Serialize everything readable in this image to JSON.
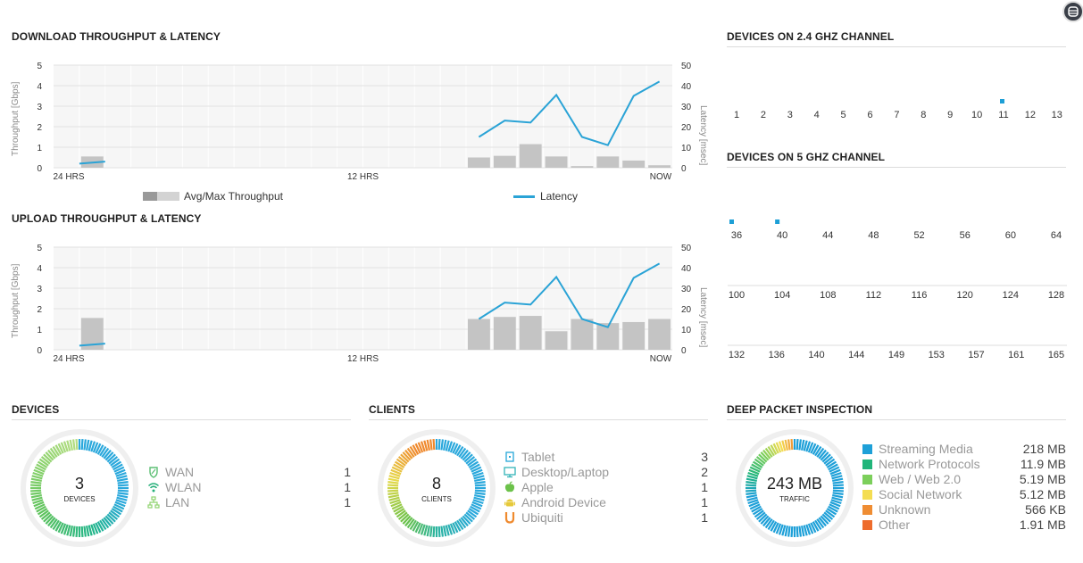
{
  "download": {
    "title": "DOWNLOAD THROUGHPUT & LATENCY",
    "y_left_label": "Throughput [Gbps]",
    "y_right_label": "Latency [msec]",
    "legend_throughput": "Avg/Max Throughput",
    "legend_latency": "Latency"
  },
  "upload": {
    "title": "UPLOAD THROUGHPUT & LATENCY",
    "y_left_label": "Throughput [Gbps]",
    "y_right_label": "Latency [msec]"
  },
  "chart_data": [
    {
      "type": "bar",
      "name": "download",
      "title": "DOWNLOAD THROUGHPUT & LATENCY",
      "x_ticks": [
        "24 HRS",
        "12 HRS",
        "NOW"
      ],
      "bucket_count": 24,
      "ylim_left": [
        0,
        5
      ],
      "ylim_right": [
        0,
        50
      ],
      "yticks_left": [
        "0",
        "1",
        "2",
        "3",
        "4",
        "5"
      ],
      "yticks_right": [
        "0",
        "10",
        "20",
        "30",
        "40",
        "50"
      ],
      "series": [
        {
          "name": "Avg/Max Throughput",
          "axis": "left",
          "points": [
            [
              1,
              0.55
            ],
            [
              16,
              0.5
            ],
            [
              17,
              0.58
            ],
            [
              18,
              1.15
            ],
            [
              19,
              0.55
            ],
            [
              20,
              0.08
            ],
            [
              21,
              0.55
            ],
            [
              22,
              0.35
            ],
            [
              23,
              0.12
            ]
          ]
        },
        {
          "name": "Latency",
          "axis": "right",
          "color": "#2aa3d6",
          "segments": [
            [
              [
                0.5,
                2
              ],
              [
                1.5,
                3
              ]
            ],
            [
              [
                16,
                15
              ],
              [
                17,
                23
              ],
              [
                18,
                22
              ],
              [
                19,
                35.5
              ],
              [
                20,
                15
              ],
              [
                21,
                11
              ],
              [
                22,
                35
              ],
              [
                23,
                42
              ]
            ]
          ]
        }
      ]
    },
    {
      "type": "bar",
      "name": "upload",
      "title": "UPLOAD THROUGHPUT & LATENCY",
      "x_ticks": [
        "24 HRS",
        "12 HRS",
        "NOW"
      ],
      "bucket_count": 24,
      "ylim_left": [
        0,
        5
      ],
      "ylim_right": [
        0,
        50
      ],
      "yticks_left": [
        "0",
        "1",
        "2",
        "3",
        "4",
        "5"
      ],
      "yticks_right": [
        "0",
        "10",
        "20",
        "30",
        "40",
        "50"
      ],
      "series": [
        {
          "name": "Avg/Max Throughput",
          "axis": "left",
          "points": [
            [
              1,
              1.55
            ],
            [
              16,
              1.5
            ],
            [
              17,
              1.6
            ],
            [
              18,
              1.65
            ],
            [
              19,
              0.9
            ],
            [
              20,
              1.5
            ],
            [
              21,
              1.3
            ],
            [
              22,
              1.35
            ],
            [
              23,
              1.5
            ]
          ]
        },
        {
          "name": "Latency",
          "axis": "right",
          "color": "#2aa3d6",
          "segments": [
            [
              [
                0.5,
                2
              ],
              [
                1.5,
                3
              ]
            ],
            [
              [
                16,
                15
              ],
              [
                17,
                23
              ],
              [
                18,
                22
              ],
              [
                19,
                35.5
              ],
              [
                20,
                15
              ],
              [
                21,
                11
              ],
              [
                22,
                35
              ],
              [
                23,
                42
              ]
            ]
          ]
        }
      ]
    },
    {
      "type": "scatter",
      "name": "channels-24",
      "title": "DEVICES ON 2.4 GHZ CHANNEL",
      "categories": [
        "1",
        "2",
        "3",
        "4",
        "5",
        "6",
        "7",
        "8",
        "9",
        "10",
        "11",
        "12",
        "13"
      ],
      "points": [
        {
          "channel": "11",
          "devices": 1
        }
      ]
    },
    {
      "type": "scatter",
      "name": "channels-5",
      "title": "DEVICES ON 5 GHZ CHANNEL",
      "rows": [
        [
          "36",
          "40",
          "44",
          "48",
          "52",
          "56",
          "60",
          "64"
        ],
        [
          "100",
          "104",
          "108",
          "112",
          "116",
          "120",
          "124",
          "128"
        ],
        [
          "132",
          "136",
          "140",
          "144",
          "149",
          "153",
          "157",
          "161",
          "165"
        ]
      ],
      "points": [
        {
          "channel": "36",
          "devices": 1
        },
        {
          "channel": "40",
          "devices": 1
        }
      ]
    }
  ],
  "channels24": {
    "title": "DEVICES ON 2.4 GHZ CHANNEL"
  },
  "channels5": {
    "title": "DEVICES ON 5 GHZ CHANNEL"
  },
  "devices": {
    "title": "DEVICES",
    "total": "3",
    "total_label": "DEVICES",
    "items": [
      {
        "label": "WAN",
        "count": "1",
        "icon": "shield-icon",
        "color": "#5bbf73"
      },
      {
        "label": "WLAN",
        "count": "1",
        "icon": "wifi-icon",
        "color": "#27b07a"
      },
      {
        "label": "LAN",
        "count": "1",
        "icon": "network-icon",
        "color": "#8fd36f"
      }
    ]
  },
  "clients": {
    "title": "CLIENTS",
    "total": "8",
    "total_label": "CLIENTS",
    "items": [
      {
        "label": "Tablet",
        "count": "3",
        "icon": "tablet-icon",
        "color": "#27a7d8"
      },
      {
        "label": "Desktop/Laptop",
        "count": "2",
        "icon": "desktop-icon",
        "color": "#32b3b8"
      },
      {
        "label": "Apple",
        "count": "1",
        "icon": "apple-icon",
        "color": "#6cc24a"
      },
      {
        "label": "Android Device",
        "count": "1",
        "icon": "android-icon",
        "color": "#e6c93a"
      },
      {
        "label": "Ubiquiti",
        "count": "1",
        "icon": "ubiquiti-icon",
        "color": "#ef8a2e"
      }
    ]
  },
  "dpi": {
    "title": "DEEP PACKET INSPECTION",
    "total": "243 MB",
    "total_label": "TRAFFIC",
    "items": [
      {
        "label": "Streaming Media",
        "value": "218 MB",
        "color": "#1ea0d8"
      },
      {
        "label": "Network Protocols",
        "value": "11.9 MB",
        "color": "#21b57a"
      },
      {
        "label": "Web / Web 2.0",
        "value": "5.19 MB",
        "color": "#7ccf5b"
      },
      {
        "label": "Social Network",
        "value": "5.12 MB",
        "color": "#f4dd52"
      },
      {
        "label": "Unknown",
        "value": "566 KB",
        "color": "#ef8d33"
      },
      {
        "label": "Other",
        "value": "1.91 MB",
        "color": "#ee6c2c"
      }
    ]
  }
}
